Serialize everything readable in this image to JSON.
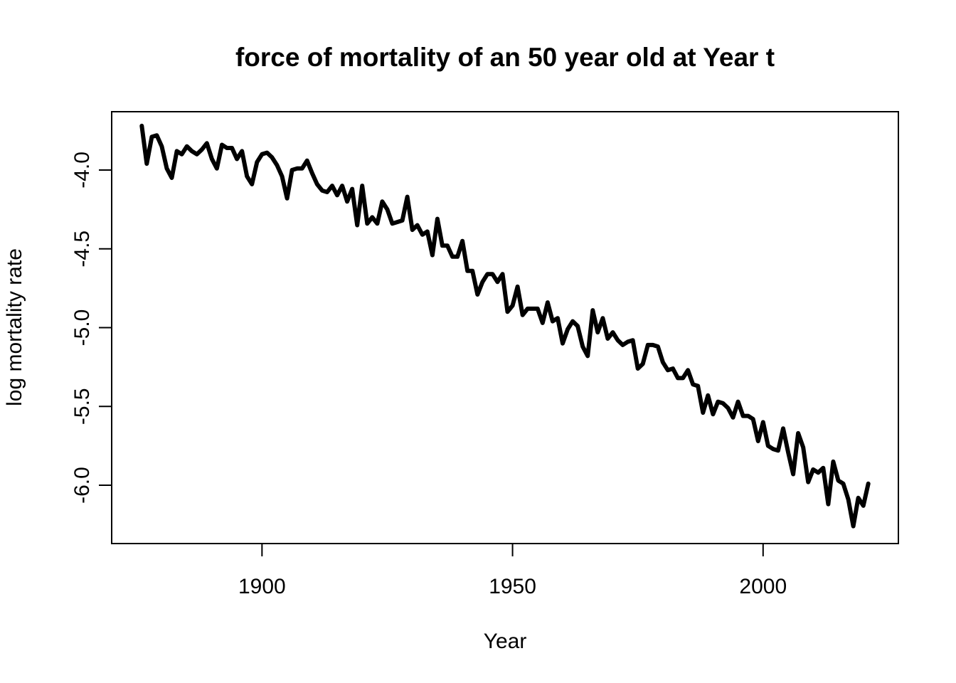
{
  "chart_data": {
    "type": "line",
    "title": "force of mortality of an 50 year old at Year t",
    "xlabel": "Year",
    "ylabel": "log mortality rate",
    "xlim": [
      1870,
      2027
    ],
    "ylim": [
      -6.37,
      -3.63
    ],
    "xticks": [
      1900,
      1950,
      2000
    ],
    "yticks": [
      -4.0,
      -4.5,
      -5.0,
      -5.5,
      -6.0
    ],
    "ytick_labels": [
      "-4.0",
      "-4.5",
      "-5.0",
      "-5.5",
      "-6.0"
    ],
    "line_color": "#000000",
    "series": [
      {
        "x": [
          1876,
          1877,
          1878,
          1879,
          1880,
          1881,
          1882,
          1883,
          1884,
          1885,
          1886,
          1887,
          1888,
          1889,
          1890,
          1891,
          1892,
          1893,
          1894,
          1895,
          1896,
          1897,
          1898,
          1899,
          1900,
          1901,
          1902,
          1903,
          1904,
          1905,
          1906,
          1907,
          1908,
          1909,
          1910,
          1911,
          1912,
          1913,
          1914,
          1915,
          1916,
          1917,
          1918,
          1919,
          1920,
          1921,
          1922,
          1923,
          1924,
          1925,
          1926,
          1927,
          1928,
          1929,
          1930,
          1931,
          1932,
          1933,
          1934,
          1935,
          1936,
          1937,
          1938,
          1939,
          1940,
          1941,
          1942,
          1943,
          1944,
          1945,
          1946,
          1947,
          1948,
          1949,
          1950,
          1951,
          1952,
          1953,
          1954,
          1955,
          1956,
          1957,
          1958,
          1959,
          1960,
          1961,
          1962,
          1963,
          1964,
          1965,
          1966,
          1967,
          1968,
          1969,
          1970,
          1971,
          1972,
          1973,
          1974,
          1975,
          1976,
          1977,
          1978,
          1979,
          1980,
          1981,
          1982,
          1983,
          1984,
          1985,
          1986,
          1987,
          1988,
          1989,
          1990,
          1991,
          1992,
          1993,
          1994,
          1995,
          1996,
          1997,
          1998,
          1999,
          2000,
          2001,
          2002,
          2003,
          2004,
          2005,
          2006,
          2007,
          2008,
          2009,
          2010,
          2011,
          2012,
          2013,
          2014,
          2015,
          2016,
          2017,
          2018,
          2019,
          2020,
          2021
        ],
        "y": [
          -3.72,
          -3.96,
          -3.79,
          -3.78,
          -3.85,
          -3.99,
          -4.05,
          -3.88,
          -3.9,
          -3.85,
          -3.88,
          -3.9,
          -3.87,
          -3.83,
          -3.93,
          -3.99,
          -3.84,
          -3.86,
          -3.86,
          -3.93,
          -3.88,
          -4.04,
          -4.09,
          -3.95,
          -3.9,
          -3.89,
          -3.92,
          -3.97,
          -4.04,
          -4.18,
          -4.0,
          -3.99,
          -3.99,
          -3.94,
          -4.02,
          -4.09,
          -4.13,
          -4.14,
          -4.1,
          -4.16,
          -4.1,
          -4.2,
          -4.12,
          -4.35,
          -4.1,
          -4.34,
          -4.3,
          -4.34,
          -4.2,
          -4.25,
          -4.34,
          -4.33,
          -4.32,
          -4.17,
          -4.38,
          -4.35,
          -4.41,
          -4.39,
          -4.54,
          -4.31,
          -4.48,
          -4.48,
          -4.55,
          -4.55,
          -4.45,
          -4.64,
          -4.64,
          -4.79,
          -4.71,
          -4.66,
          -4.66,
          -4.71,
          -4.66,
          -4.9,
          -4.86,
          -4.74,
          -4.92,
          -4.88,
          -4.88,
          -4.88,
          -4.97,
          -4.84,
          -4.96,
          -4.94,
          -5.1,
          -5.01,
          -4.96,
          -4.99,
          -5.12,
          -5.18,
          -4.89,
          -5.03,
          -4.94,
          -5.07,
          -5.03,
          -5.08,
          -5.11,
          -5.09,
          -5.08,
          -5.26,
          -5.23,
          -5.11,
          -5.11,
          -5.12,
          -5.22,
          -5.27,
          -5.26,
          -5.32,
          -5.32,
          -5.27,
          -5.36,
          -5.37,
          -5.54,
          -5.43,
          -5.55,
          -5.47,
          -5.48,
          -5.51,
          -5.57,
          -5.47,
          -5.56,
          -5.56,
          -5.58,
          -5.72,
          -5.6,
          -5.75,
          -5.77,
          -5.78,
          -5.64,
          -5.79,
          -5.93,
          -5.67,
          -5.76,
          -5.98,
          -5.9,
          -5.92,
          -5.89,
          -6.12,
          -5.85,
          -5.97,
          -5.99,
          -6.09,
          -6.26,
          -6.08,
          -6.13,
          -5.99
        ]
      }
    ]
  }
}
